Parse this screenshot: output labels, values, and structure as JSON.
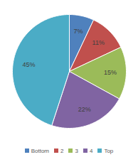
{
  "chart_data": {
    "type": "pie",
    "categories": [
      "Bottom",
      "2",
      "3",
      "4",
      "Top"
    ],
    "values": [
      7,
      11,
      15,
      22,
      45
    ],
    "value_labels": [
      "7%",
      "11%",
      "15%",
      "22%",
      "45%"
    ],
    "colors": [
      "#4f81bd",
      "#c0504d",
      "#9bbb59",
      "#8064a2",
      "#4bacc6"
    ],
    "data_labels": true,
    "legend": "bottom"
  }
}
